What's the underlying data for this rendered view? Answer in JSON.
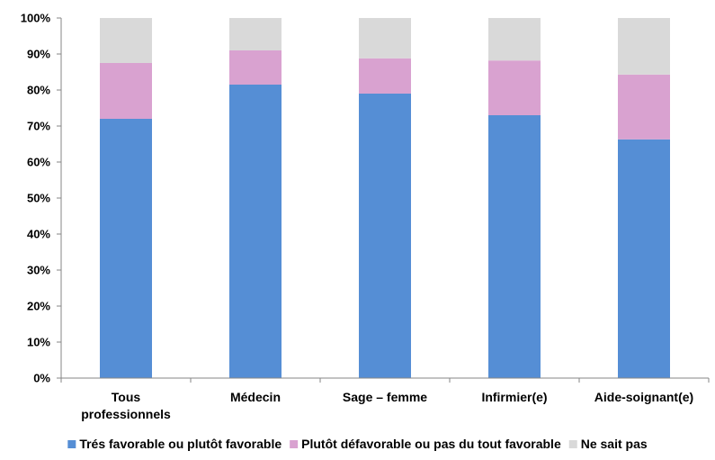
{
  "chart_data": {
    "type": "bar",
    "stacked": true,
    "percent": true,
    "categories": [
      [
        "Tous",
        "professionnels"
      ],
      [
        "Médecin"
      ],
      [
        "Sage – femme"
      ],
      [
        "Infirmier(e)"
      ],
      [
        "Aide-soignant(e)"
      ]
    ],
    "series": [
      {
        "name": "Trés favorable ou plutôt favorable",
        "color": "#558ED5",
        "values": [
          72,
          81.5,
          79,
          73,
          66.3
        ]
      },
      {
        "name": "Plutôt défavorable ou pas du tout favorable",
        "color": "#D9A2D0",
        "values": [
          15.5,
          9.5,
          9.8,
          15.2,
          18
        ]
      },
      {
        "name": "Ne sait pas",
        "color": "#D9D9D9",
        "values": [
          12.5,
          9,
          11.2,
          11.8,
          15.7
        ]
      }
    ],
    "ylim": [
      0,
      100
    ],
    "yticks": [
      "0%",
      "10%",
      "20%",
      "30%",
      "40%",
      "50%",
      "60%",
      "70%",
      "80%",
      "90%",
      "100%"
    ],
    "grid": false,
    "legend_position": "bottom"
  }
}
